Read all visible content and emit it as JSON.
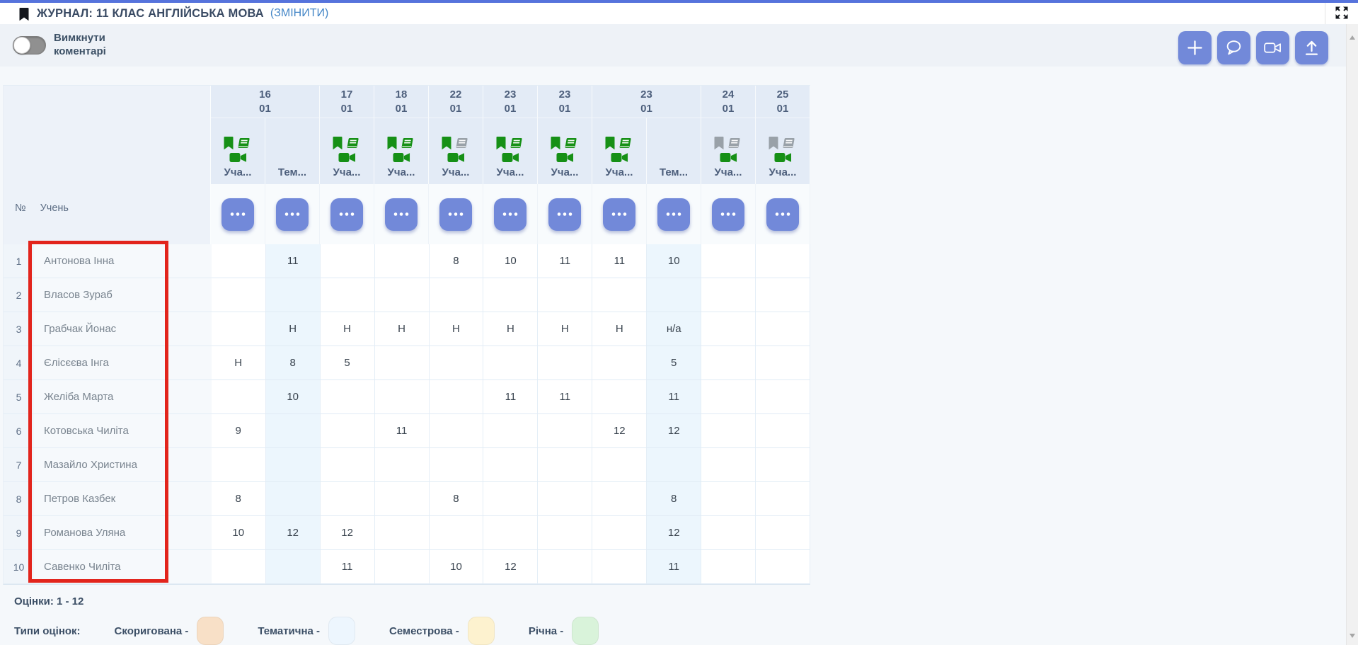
{
  "chrome": {
    "title": "ЖУРНАЛ: 11 КЛАС АНГЛІЙСЬКА МОВА",
    "edit_link": "(ЗМІНИТИ)",
    "title_icon": "bookmark-icon",
    "corner_icon": "expand-arrows-icon"
  },
  "toolbar": {
    "toggle_label": "Вимкнути коментарі",
    "toggle_state": "off",
    "actions": [
      {
        "name": "add",
        "icon": "plus"
      },
      {
        "name": "comments",
        "icon": "chat-bubble"
      },
      {
        "name": "video-call",
        "icon": "video-camera"
      },
      {
        "name": "upload",
        "icon": "upload-arrow"
      }
    ]
  },
  "journal": {
    "row_number_header": "№",
    "student_header": "Учень",
    "column_menu_icon": "ellipsis",
    "date_groups": [
      {
        "day": "16",
        "month": "01",
        "span": 2
      },
      {
        "day": "17",
        "month": "01",
        "span": 1
      },
      {
        "day": "18",
        "month": "01",
        "span": 1
      },
      {
        "day": "22",
        "month": "01",
        "span": 1
      },
      {
        "day": "23",
        "month": "01",
        "span": 1
      },
      {
        "day": "23",
        "month": "01",
        "span": 1
      },
      {
        "day": "23",
        "month": "01",
        "span": 2
      },
      {
        "day": "24",
        "month": "01",
        "span": 1
      },
      {
        "day": "25",
        "month": "01",
        "span": 1
      }
    ],
    "columns": [
      {
        "label": "Уча...",
        "type": "lesson",
        "icons": {
          "bookmark": "green",
          "book": "green",
          "camera": "green"
        }
      },
      {
        "label": "Тем...",
        "type": "thematic",
        "icons": null
      },
      {
        "label": "Уча...",
        "type": "lesson",
        "icons": {
          "bookmark": "green",
          "book": "green",
          "camera": "green"
        }
      },
      {
        "label": "Уча...",
        "type": "lesson",
        "icons": {
          "bookmark": "green",
          "book": "green",
          "camera": "green"
        }
      },
      {
        "label": "Уча...",
        "type": "lesson",
        "icons": {
          "bookmark": "green",
          "book": "gray",
          "camera": "green"
        }
      },
      {
        "label": "Уча...",
        "type": "lesson",
        "icons": {
          "bookmark": "green",
          "book": "green",
          "camera": "green"
        }
      },
      {
        "label": "Уча...",
        "type": "lesson",
        "icons": {
          "bookmark": "green",
          "book": "green",
          "camera": "green"
        }
      },
      {
        "label": "Уча...",
        "type": "lesson",
        "icons": {
          "bookmark": "green",
          "book": "green",
          "camera": "green"
        }
      },
      {
        "label": "Тем...",
        "type": "thematic",
        "icons": null
      },
      {
        "label": "Уча...",
        "type": "lesson",
        "icons": {
          "bookmark": "gray",
          "book": "gray",
          "camera": "green"
        }
      },
      {
        "label": "Уча...",
        "type": "lesson",
        "icons": {
          "bookmark": "gray",
          "book": "gray",
          "camera": "green"
        }
      }
    ],
    "students": [
      {
        "num": "1",
        "name": "Антонова Інна",
        "grades": [
          "",
          "11",
          "",
          "",
          "8",
          "10",
          "11",
          "11",
          "10",
          "",
          ""
        ]
      },
      {
        "num": "2",
        "name": "Власов Зураб",
        "grades": [
          "",
          "",
          "",
          "",
          "",
          "",
          "",
          "",
          "",
          "",
          ""
        ]
      },
      {
        "num": "3",
        "name": "Грабчак Йонас",
        "grades": [
          "",
          "Н",
          "Н",
          "Н",
          "Н",
          "Н",
          "Н",
          "Н",
          "н/а",
          "",
          ""
        ]
      },
      {
        "num": "4",
        "name": "Єлісєєва Інга",
        "grades": [
          "Н",
          "8",
          "5",
          "",
          "",
          "",
          "",
          "",
          "5",
          "",
          ""
        ]
      },
      {
        "num": "5",
        "name": "Желіба Марта",
        "grades": [
          "",
          "10",
          "",
          "",
          "",
          "11",
          "11",
          "",
          "11",
          "",
          ""
        ]
      },
      {
        "num": "6",
        "name": "Котовська Чиліта",
        "grades": [
          "9",
          "",
          "",
          "11",
          "",
          "",
          "",
          "12",
          "12",
          "",
          ""
        ]
      },
      {
        "num": "7",
        "name": "Мазайло Христина",
        "grades": [
          "",
          "",
          "",
          "",
          "",
          "",
          "",
          "",
          "",
          "",
          ""
        ]
      },
      {
        "num": "8",
        "name": "Петров Казбек",
        "grades": [
          "8",
          "",
          "",
          "",
          "8",
          "",
          "",
          "",
          "8",
          "",
          ""
        ]
      },
      {
        "num": "9",
        "name": "Романова Уляна",
        "grades": [
          "10",
          "12",
          "12",
          "",
          "",
          "",
          "",
          "",
          "12",
          "",
          ""
        ]
      },
      {
        "num": "10",
        "name": "Савенко Чиліта",
        "grades": [
          "",
          "",
          "11",
          "",
          "10",
          "12",
          "",
          "",
          "11",
          "",
          ""
        ]
      }
    ]
  },
  "legend": {
    "range_label": "Оцінки: 1 - 12",
    "types_label": "Типи оцінок:",
    "types": [
      {
        "label": "Скоригована -",
        "color": "#f8e0c7"
      },
      {
        "label": "Тематична -",
        "color": "#edf6fe"
      },
      {
        "label": "Семестрова -",
        "color": "#fdf2cf"
      },
      {
        "label": "Річна -",
        "color": "#d9f3da"
      }
    ]
  },
  "colors": {
    "accent": "#7289d9",
    "top_bar": "#5673dc",
    "icon_green": "#169016",
    "icon_gray": "#99a1a8",
    "highlight_red": "#e2241c",
    "thematic_cell": "#ecf6fd",
    "link": "#4587c7"
  }
}
